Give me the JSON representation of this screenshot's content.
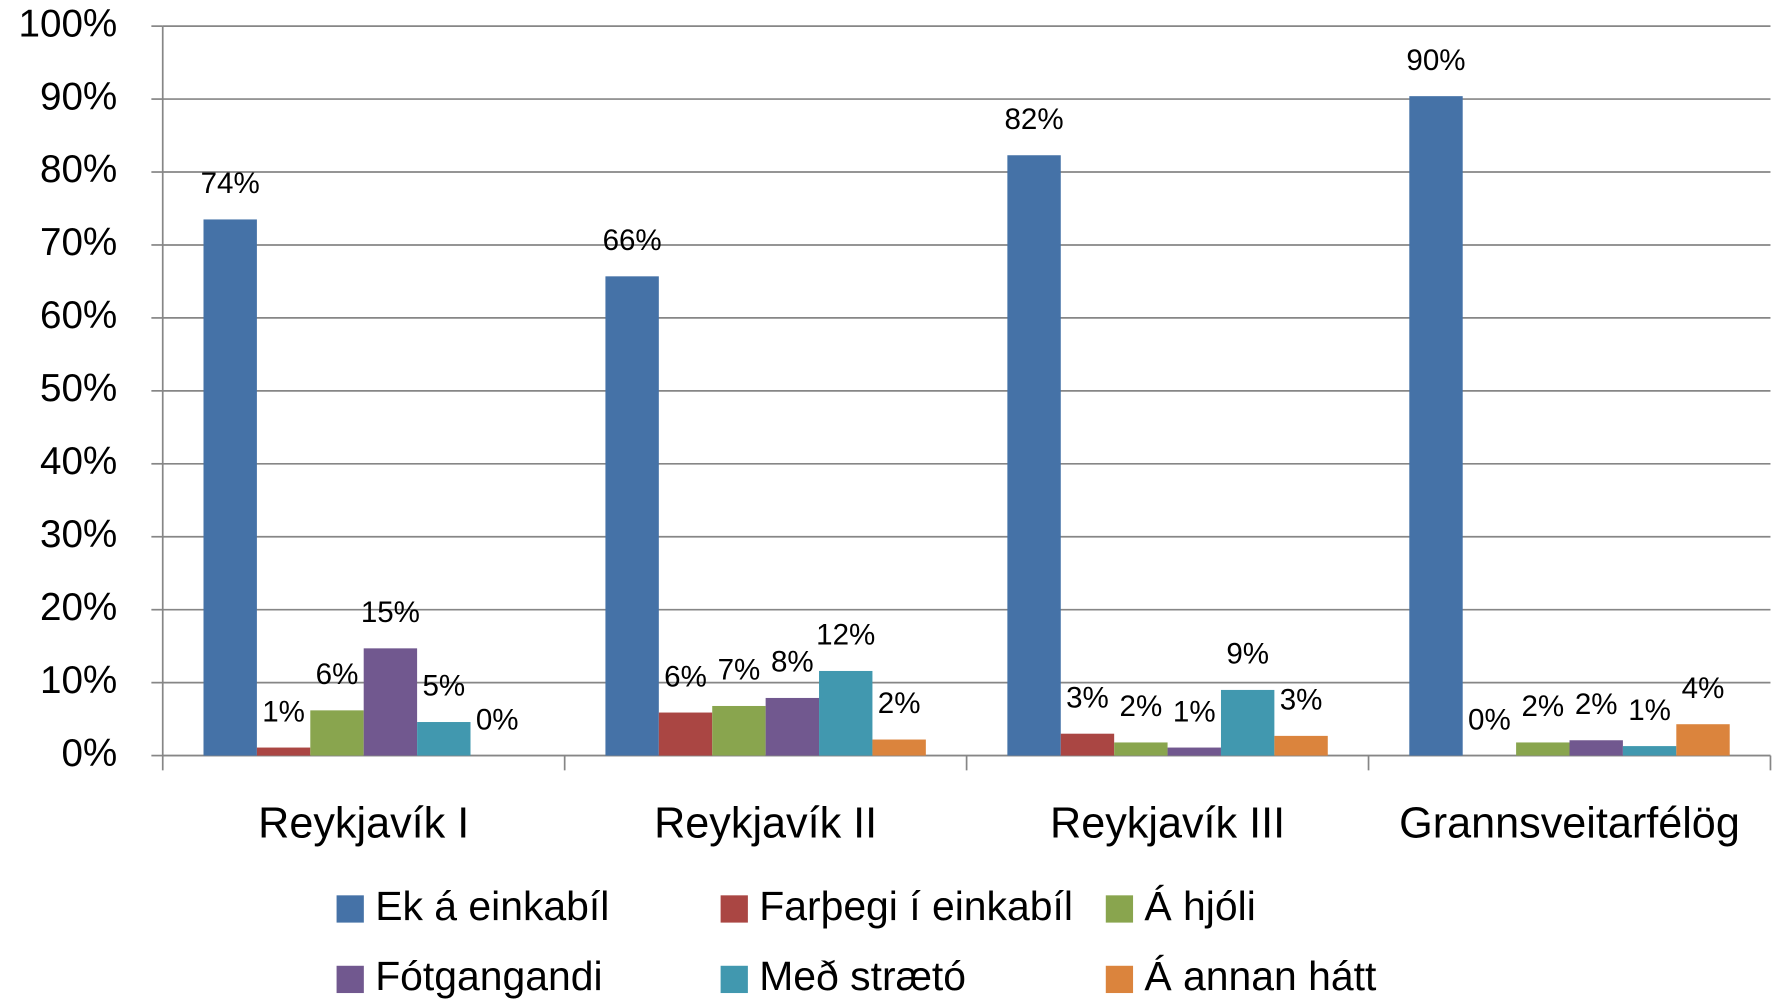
{
  "chart_data": {
    "type": "bar",
    "categories": [
      "Reykjavík I",
      "Reykjavík II",
      "Reykjavík III",
      "Grannsveitarfélög"
    ],
    "series": [
      {
        "name": "Ek á einkabíl",
        "color": "#4572a7",
        "values": [
          73.5,
          65.7,
          82.3,
          90.4
        ],
        "value_labels": [
          "74%",
          "66%",
          "82%",
          "90%"
        ]
      },
      {
        "name": "Farþegi í einkabíl",
        "color": "#aa4643",
        "values": [
          1.1,
          5.9,
          3.0,
          0
        ],
        "value_labels": [
          "1%",
          "6%",
          "3%",
          "0%"
        ]
      },
      {
        "name": "Á hjóli",
        "color": "#89a54e",
        "values": [
          6.2,
          6.8,
          1.8,
          1.8
        ],
        "value_labels": [
          "6%",
          "7%",
          "2%",
          "2%"
        ]
      },
      {
        "name": "Fótgangandi",
        "color": "#71588f",
        "values": [
          14.7,
          7.9,
          1.1,
          2.1
        ],
        "value_labels": [
          "15%",
          "8%",
          "1%",
          "2%"
        ]
      },
      {
        "name": "Með strætó",
        "color": "#4198af",
        "values": [
          4.6,
          11.6,
          9.0,
          1.3
        ],
        "value_labels": [
          "5%",
          "12%",
          "9%",
          "1%"
        ]
      },
      {
        "name": "Á annan hátt",
        "color": "#db843d",
        "values": [
          0,
          2.2,
          2.7,
          4.3
        ],
        "value_labels": [
          "0%",
          "2%",
          "3%",
          "4%"
        ]
      }
    ],
    "ylim": [
      0,
      100
    ],
    "yticks": [
      {
        "value": 0,
        "label": "0%"
      },
      {
        "value": 10,
        "label": "10%"
      },
      {
        "value": 20,
        "label": "20%"
      },
      {
        "value": 30,
        "label": "30%"
      },
      {
        "value": 40,
        "label": "40%"
      },
      {
        "value": 50,
        "label": "50%"
      },
      {
        "value": 60,
        "label": "60%"
      },
      {
        "value": 70,
        "label": "70%"
      },
      {
        "value": 80,
        "label": "80%"
      },
      {
        "value": 90,
        "label": "90%"
      },
      {
        "value": 100,
        "label": "100%"
      }
    ],
    "grid": true,
    "legend": "bottom"
  }
}
